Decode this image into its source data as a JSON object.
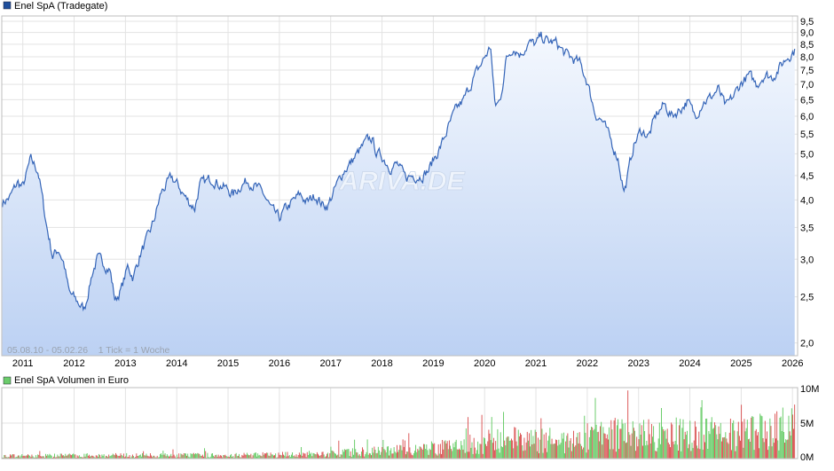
{
  "chart_data": [
    {
      "type": "area",
      "title": "Enel SpA (Tradegate)",
      "legend_color": "#1f4e9b",
      "line_color": "#3565b8",
      "fill_top_color": "#f4f8fe",
      "fill_bottom_color": "#bcd1f3",
      "y_scale": "log",
      "ylim": [
        1.88,
        9.75
      ],
      "y_ticks": [
        "9,5",
        "9,0",
        "8,5",
        "8,0",
        "7,5",
        "7,0",
        "6,5",
        "6,0",
        "5,5",
        "5,0",
        "4,5",
        "4,0",
        "3,5",
        "3,0",
        "2,5",
        "2,0"
      ],
      "x_ticks": [
        "2011",
        "2012",
        "2013",
        "2014",
        "2015",
        "2016",
        "2017",
        "2018",
        "2019",
        "2020",
        "2021",
        "2022",
        "2023",
        "2024",
        "2025",
        "2026"
      ],
      "xlim": [
        2010.59,
        2026.1
      ],
      "grid": true,
      "footer_text": "05.08.10 - 05.02.26    1 Tick = 1 Woche",
      "watermark": "ARIVA.DE",
      "x": [
        2010.6,
        2010.75,
        2010.9,
        2011.0,
        2011.15,
        2011.3,
        2011.45,
        2011.58,
        2011.7,
        2011.8,
        2011.9,
        2012.05,
        2012.2,
        2012.35,
        2012.45,
        2012.58,
        2012.7,
        2012.8,
        2012.92,
        2013.05,
        2013.15,
        2013.3,
        2013.45,
        2013.55,
        2013.7,
        2013.8,
        2013.9,
        2014.05,
        2014.2,
        2014.35,
        2014.45,
        2014.55,
        2014.7,
        2014.85,
        2015.0,
        2015.1,
        2015.25,
        2015.4,
        2015.55,
        2015.7,
        2015.85,
        2016.0,
        2016.1,
        2016.25,
        2016.4,
        2016.55,
        2016.7,
        2016.85,
        2016.95,
        2017.1,
        2017.25,
        2017.4,
        2017.55,
        2017.7,
        2017.8,
        2017.9,
        2018.0,
        2018.15,
        2018.3,
        2018.45,
        2018.6,
        2018.75,
        2018.9,
        2019.0,
        2019.15,
        2019.3,
        2019.45,
        2019.6,
        2019.75,
        2019.9,
        2020.02,
        2020.12,
        2020.2,
        2020.3,
        2020.42,
        2020.55,
        2020.7,
        2020.85,
        2021.0,
        2021.1,
        2021.25,
        2021.4,
        2021.55,
        2021.7,
        2021.85,
        2022.0,
        2022.15,
        2022.3,
        2022.45,
        2022.6,
        2022.72,
        2022.8,
        2022.9,
        2023.05,
        2023.2,
        2023.35,
        2023.5,
        2023.65,
        2023.8,
        2023.95,
        2024.1,
        2024.25,
        2024.4,
        2024.55,
        2024.7,
        2024.85,
        2025.0,
        2025.15,
        2025.3,
        2025.45,
        2025.6,
        2025.75,
        2025.9,
        2026.0,
        2026.05
      ],
      "y": [
        3.95,
        4.05,
        4.35,
        4.25,
        4.85,
        4.6,
        3.6,
        3.05,
        3.15,
        2.95,
        2.55,
        2.45,
        2.35,
        2.8,
        3.0,
        2.95,
        2.85,
        2.45,
        2.6,
        2.9,
        2.75,
        3.1,
        3.35,
        3.6,
        4.15,
        4.3,
        4.45,
        4.25,
        4.0,
        3.85,
        4.3,
        4.35,
        4.45,
        4.3,
        4.2,
        4.1,
        4.3,
        4.4,
        4.25,
        4.1,
        3.8,
        3.65,
        3.8,
        3.95,
        4.1,
        3.95,
        4.1,
        3.9,
        3.9,
        4.25,
        4.6,
        4.8,
        5.05,
        5.3,
        5.4,
        5.0,
        4.95,
        4.7,
        4.75,
        4.45,
        4.5,
        4.5,
        4.6,
        4.85,
        5.2,
        5.7,
        6.2,
        6.5,
        7.1,
        7.6,
        8.05,
        8.4,
        6.3,
        6.45,
        7.9,
        8.4,
        8.1,
        8.55,
        8.5,
        8.8,
        8.6,
        8.55,
        8.15,
        7.95,
        7.75,
        7.1,
        6.1,
        5.85,
        5.35,
        4.9,
        4.15,
        4.55,
        5.2,
        5.6,
        5.45,
        6.05,
        6.35,
        6.0,
        6.2,
        6.45,
        6.0,
        6.45,
        6.55,
        6.85,
        6.25,
        6.6,
        7.05,
        7.3,
        7.0,
        7.35,
        7.25,
        7.6,
        8.0,
        8.2,
        8.25
      ]
    },
    {
      "type": "bar",
      "title": "Enel SpA Volumen in Euro",
      "legend_color": "#6bcc6b",
      "up_color": "#5cc85c",
      "down_color": "#d84a4a",
      "y_ticks": [
        "10M",
        "5M",
        "0M"
      ],
      "ylim": [
        0,
        10
      ],
      "x_ticks": [
        "2011",
        "2012",
        "2013",
        "2014",
        "2015",
        "2016",
        "2017",
        "2018",
        "2019",
        "2020",
        "2021",
        "2022",
        "2023",
        "2024",
        "2025",
        "2026"
      ],
      "grid": true,
      "volume_profile": {
        "x": [
          2010.6,
          2012.0,
          2014.0,
          2016.0,
          2017.0,
          2018.0,
          2019.0,
          2019.5,
          2020.0,
          2020.5,
          2021.0,
          2021.5,
          2022.0,
          2022.5,
          2023.0,
          2024.0,
          2025.0,
          2025.5,
          2026.05
        ],
        "y": [
          0.4,
          0.5,
          0.5,
          0.6,
          0.8,
          1.2,
          1.6,
          2.0,
          2.6,
          3.0,
          2.7,
          2.8,
          3.4,
          3.8,
          3.6,
          3.8,
          3.8,
          4.2,
          5.0
        ]
      }
    }
  ]
}
